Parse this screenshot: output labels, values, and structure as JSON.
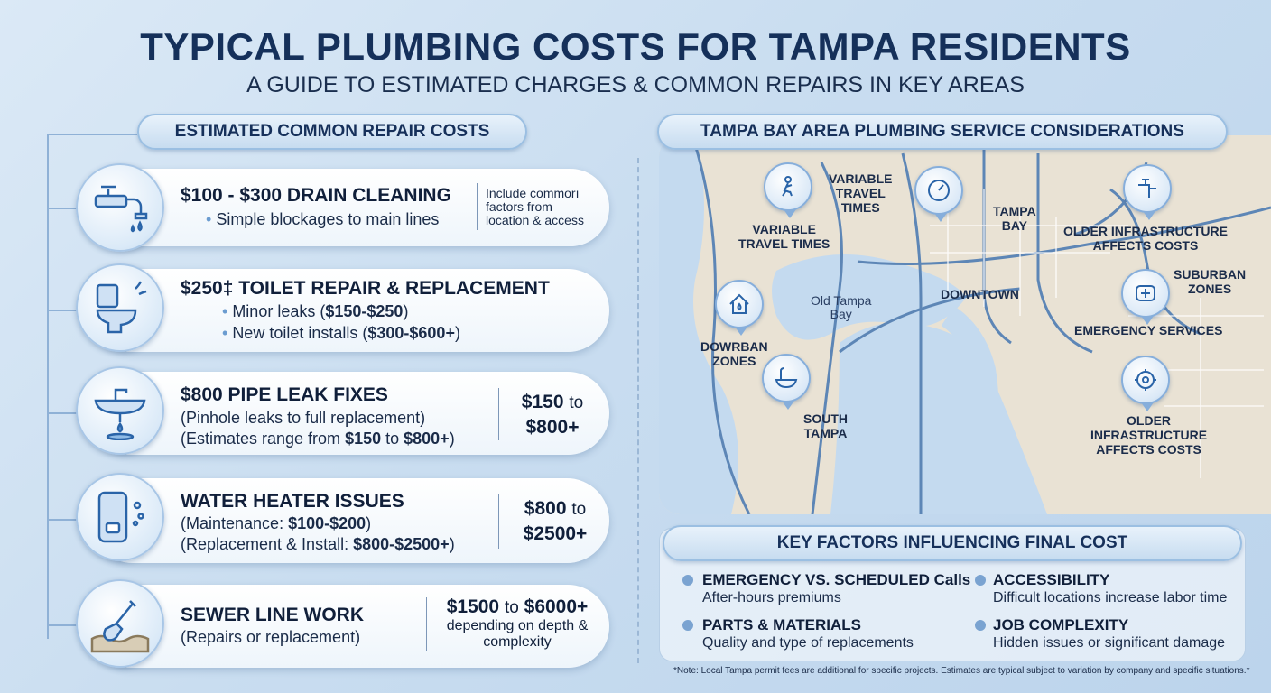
{
  "header": {
    "title": "TYPICAL PLUMBING COSTS FOR TAMPA RESIDENTS",
    "subtitle": "A GUIDE TO ESTIMATED CHARGES & COMMON REPAIRS IN KEY AREAS"
  },
  "left_section": {
    "heading": "ESTIMATED COMMON REPAIR COSTS",
    "repairs": [
      {
        "icon": "faucet-icon",
        "title": "$100 - $300 DRAIN CLEANING",
        "lines": [
          "Simple blockages to main lines"
        ],
        "side_note": [
          "Include commorı",
          "factors from",
          "location & access"
        ]
      },
      {
        "icon": "toilet-icon",
        "title": "$250‡ TOILET REPAIR & REPLACEMENT",
        "lines": [
          "Minor leaks (",
          "$150-$250",
          ")",
          "New toilet installs (",
          "$300-$600+",
          ")"
        ]
      },
      {
        "icon": "sink-leak-icon",
        "title": "$800 PIPE LEAK FIXES",
        "lines": [
          "(Pinhole leaks to full replacement)",
          "(Estimates range from ",
          "$150",
          " to ",
          "$800+",
          ")"
        ],
        "side_price": [
          "$150",
          "to",
          "$800+"
        ]
      },
      {
        "icon": "water-heater-icon",
        "title": "WATER HEATER ISSUES",
        "lines": [
          "(Maintenance: ",
          "$100-$200",
          ")",
          "(Replacement & Install: ",
          "$800-$2500+",
          ")"
        ],
        "side_price": [
          "$800",
          "to",
          "$2500+"
        ]
      },
      {
        "icon": "shovel-icon",
        "title": "SEWER LINE WORK",
        "lines": [
          "(Repairs or replacement)"
        ],
        "side_price": [
          "$1500",
          "to",
          "$6000+",
          "depending on depth &",
          "complexity"
        ]
      }
    ]
  },
  "right_section": {
    "heading": "TAMPA BAY AREA PLUMBING SERVICE CONSIDERATIONS",
    "map_labels": {
      "travel_1": [
        "VARIABLE",
        "TRAVEL",
        "TIMES"
      ],
      "travel_2": [
        "VARIABLE",
        "TRAVEL TIMES"
      ],
      "tampa_bay": [
        "TAMPA",
        "BAY"
      ],
      "older_1": [
        "OLDER INFRASTRUCTURE",
        "AFFECTS COSTS"
      ],
      "suburban": [
        "SUBURBAN",
        "ZONES"
      ],
      "downtown": "DOWNTOWN",
      "old_tampa_bay": [
        "Old Tampa",
        "Bay"
      ],
      "emergency": "EMERGENCY SERVICES",
      "dowrban": [
        "DOWRBAN",
        "ZONES"
      ],
      "south_tampa": [
        "SOUTH",
        "TAMPA"
      ],
      "older_2": [
        "OLDER",
        "INFRASTRUCTURE",
        "AFFECTS COSTS"
      ]
    },
    "factors_heading": "KEY FACTORS INFLUENCING FINAL COST",
    "factors": [
      {
        "title": "EMERGENCY VS. SCHEDULED Calls",
        "desc": "After-hours premiums"
      },
      {
        "title": "ACCESSIBILITY",
        "desc": "Difficult locations increase labor time"
      },
      {
        "title": "PARTS & MATERIALS",
        "desc": "Quality and type of replacements"
      },
      {
        "title": "JOB COMPLEXITY",
        "desc": "Hidden issues or significant damage"
      }
    ],
    "note": "*Note: Local Tampa permit fees are additional for specific projects. Estimates are typical subject to variation by company and specific situations.*"
  },
  "colors": {
    "background": "#c9ddf0",
    "title": "#15305a",
    "accent": "#7aa3d1",
    "map_land": "#e9e2d4",
    "map_water": "#c4daef"
  }
}
